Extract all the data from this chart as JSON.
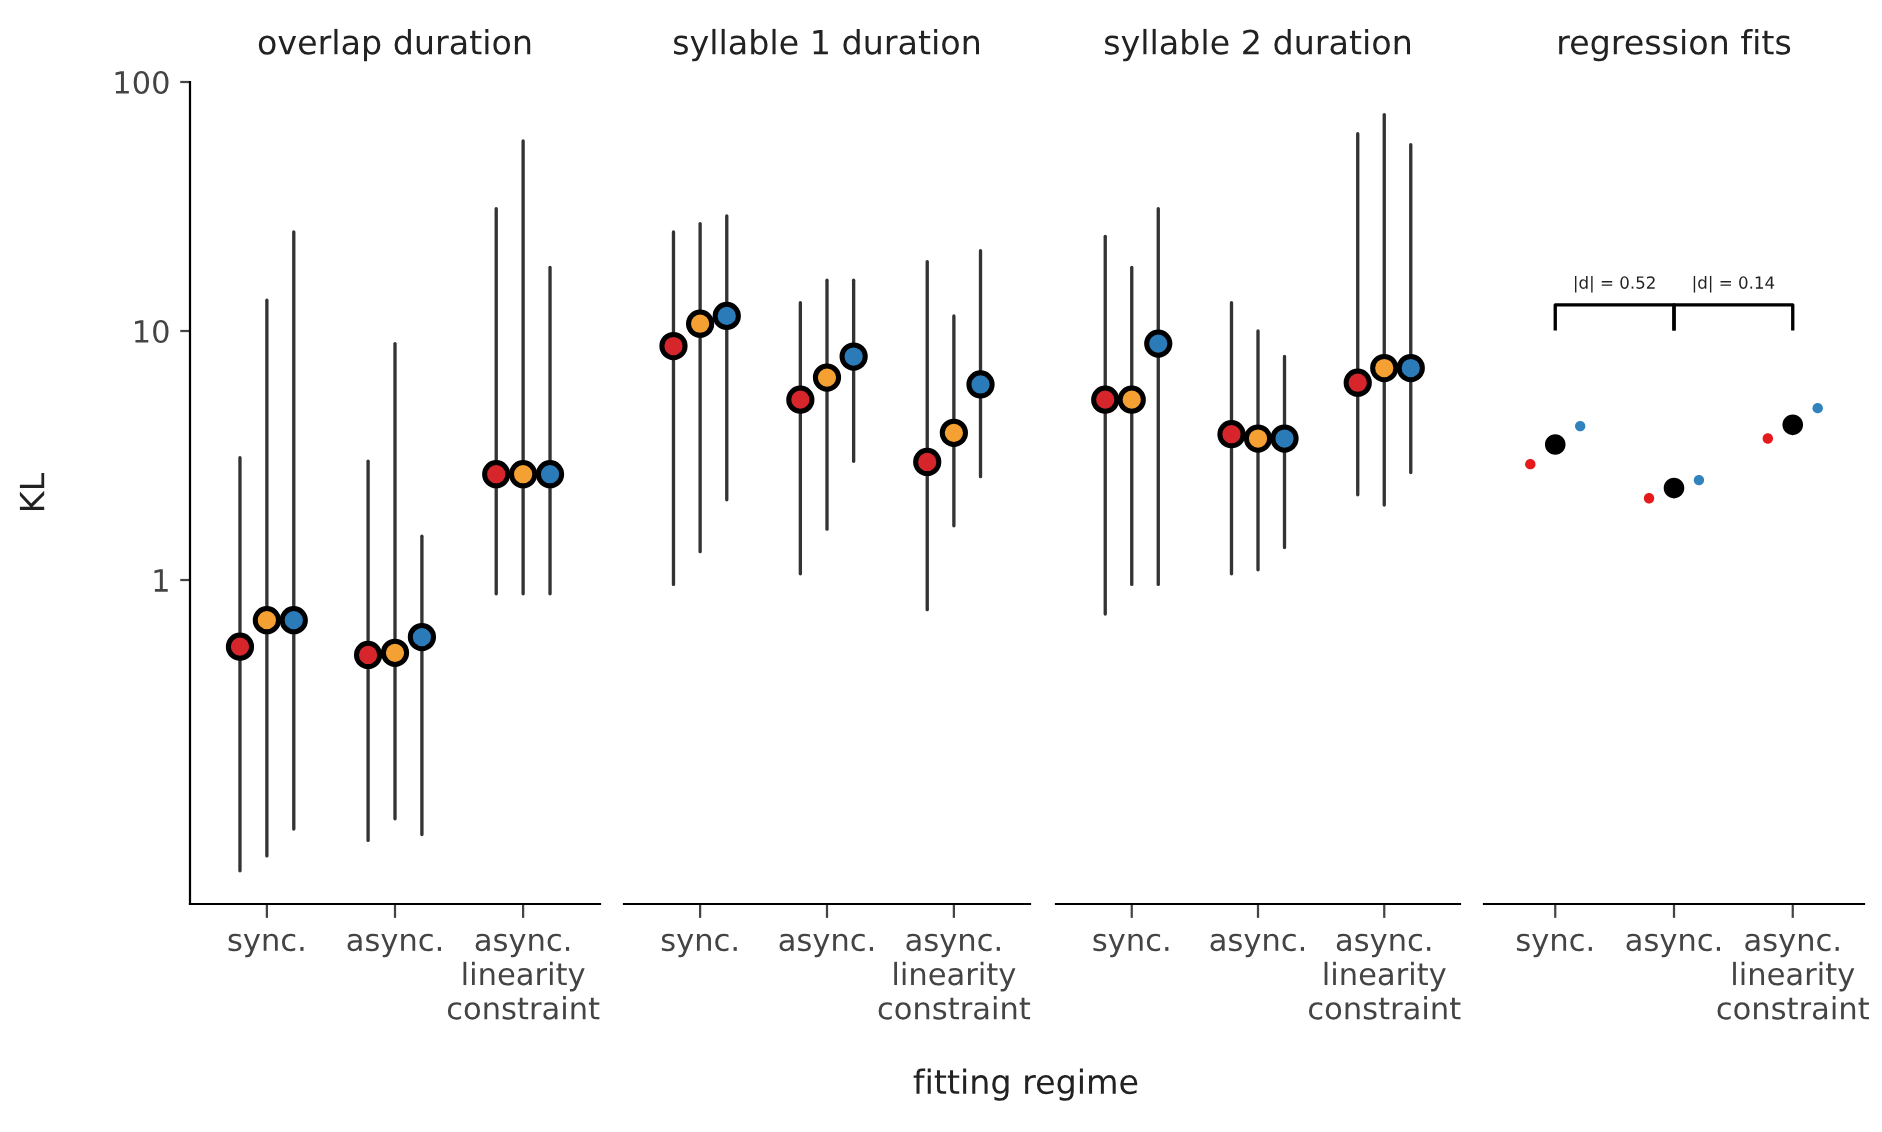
{
  "chart_data": [
    {
      "type": "scatter",
      "title": "overlap duration",
      "ylabel": "KL",
      "log": true,
      "ylim": [
        0.05,
        100
      ],
      "yticks": [
        1,
        10,
        100
      ],
      "marker": "circle",
      "grid": false,
      "categories": [
        "sync.",
        "async.",
        "async.\nlinearity\nconstraint"
      ],
      "series": [
        {
          "color": "#d7262b",
          "values": [
            0.54,
            0.5,
            2.66
          ],
          "errors": [
            [
              0.068,
              3.1
            ],
            [
              0.09,
              3.0
            ],
            [
              0.88,
              31
            ]
          ]
        },
        {
          "color": "#f5a032",
          "values": [
            0.69,
            0.51,
            2.66
          ],
          "errors": [
            [
              0.078,
              13.3
            ],
            [
              0.11,
              8.9
            ],
            [
              0.88,
              58
            ]
          ]
        },
        {
          "color": "#2b7bb9",
          "values": [
            0.69,
            0.59,
            2.66
          ],
          "errors": [
            [
              0.1,
              25
            ],
            [
              0.095,
              1.5
            ],
            [
              0.88,
              18
            ]
          ]
        }
      ]
    },
    {
      "type": "scatter",
      "title": "syllable 1 duration",
      "xlabel": "fitting regime",
      "log": true,
      "ylim": [
        0.05,
        100
      ],
      "yticks": [
        1,
        10,
        100
      ],
      "tick_labels": "x",
      "marker": "circle",
      "grid": false,
      "categories": [
        "sync.",
        "async.",
        "async.\nlinearity\nconstraint"
      ],
      "series": [
        {
          "color": "#d7262b",
          "values": [
            8.7,
            5.3,
            2.98
          ],
          "errors": [
            [
              0.96,
              25
            ],
            [
              1.06,
              13
            ],
            [
              0.76,
              19
            ]
          ]
        },
        {
          "color": "#f5a032",
          "values": [
            10.7,
            6.5,
            3.9
          ],
          "errors": [
            [
              1.3,
              27
            ],
            [
              1.6,
              16
            ],
            [
              1.65,
              11.5
            ]
          ]
        },
        {
          "color": "#2b7bb9",
          "values": [
            11.5,
            7.9,
            6.1
          ],
          "errors": [
            [
              2.1,
              29
            ],
            [
              3.0,
              16
            ],
            [
              2.6,
              21
            ]
          ]
        }
      ]
    },
    {
      "type": "scatter",
      "title": "syllable 2 duration",
      "log": true,
      "ylim": [
        0.05,
        100
      ],
      "yticks": [
        1,
        10,
        100
      ],
      "tick_labels": "x",
      "marker": "circle",
      "grid": false,
      "categories": [
        "sync.",
        "async.",
        "async.\nlinearity\nconstraint"
      ],
      "series": [
        {
          "color": "#d7262b",
          "values": [
            5.3,
            3.85,
            6.2
          ],
          "errors": [
            [
              0.73,
              24
            ],
            [
              1.06,
              13
            ],
            [
              2.2,
              62
            ]
          ]
        },
        {
          "color": "#f5a032",
          "values": [
            5.3,
            3.7,
            7.1
          ],
          "errors": [
            [
              0.96,
              18
            ],
            [
              1.1,
              10
            ],
            [
              2.0,
              74
            ]
          ]
        },
        {
          "color": "#2b7bb9",
          "values": [
            8.9,
            3.7,
            7.1
          ],
          "errors": [
            [
              0.96,
              31
            ],
            [
              1.35,
              7.9
            ],
            [
              2.7,
              56
            ]
          ]
        }
      ]
    },
    {
      "type": "scatter",
      "title": "regression fits",
      "log": true,
      "ylim": [
        0.05,
        100
      ],
      "yticks": [
        1,
        10,
        100
      ],
      "tick_labels": "x",
      "marker": "circle",
      "grid": false,
      "categories": [
        "sync.",
        "async.",
        "async.\nlinearity\nconstraint"
      ],
      "annotations": [
        "|d| = 0.52",
        "|d| = 0.14"
      ],
      "series": [
        {
          "color": "#e41a1c",
          "values": [
            2.92,
            2.13,
            3.7
          ]
        },
        {
          "color": "#000000",
          "values": [
            3.5,
            2.34,
            4.2
          ]
        },
        {
          "color": "#3182bd",
          "values": [
            4.15,
            2.52,
            4.9
          ]
        }
      ]
    }
  ]
}
